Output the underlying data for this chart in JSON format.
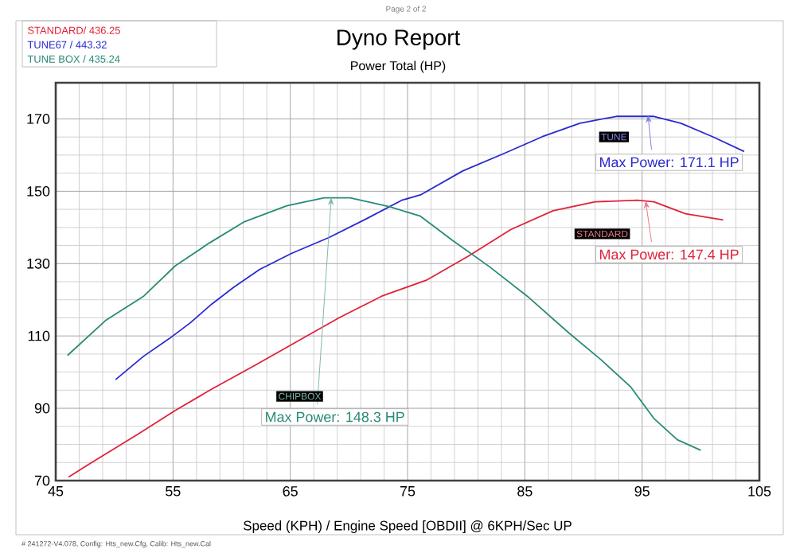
{
  "chart_data": {
    "type": "line",
    "title": "Dyno Report",
    "subtitle": "Power Total (HP)",
    "xlabel": "Speed (KPH) / Engine Speed [OBDII] @ 6KPH/Sec UP",
    "xlim": [
      45,
      105
    ],
    "ylim": [
      70,
      180
    ],
    "xticks": [
      45,
      55,
      65,
      75,
      85,
      95,
      105
    ],
    "yticks": [
      70,
      90,
      110,
      130,
      150,
      170
    ],
    "grid": true,
    "legend": "top left",
    "series": [
      {
        "name": "STANDARD/ 436.25",
        "color": "#e0223a",
        "x": [
          46.1,
          47.9,
          52.0,
          55.2,
          58.3,
          62.0,
          65.6,
          69.2,
          72.8,
          76.6,
          80.2,
          83.8,
          87.4,
          91.0,
          94.6,
          96.0,
          98.7,
          101.9
        ],
        "values": [
          71,
          74.7,
          82.8,
          89.4,
          95.3,
          101.9,
          108.5,
          115.1,
          121,
          125.4,
          132.1,
          139.4,
          144.6,
          147.1,
          147.5,
          147.1,
          143.8,
          142.1
        ]
      },
      {
        "name": "TUNE67 / 443.32",
        "color": "#2a2ad0",
        "x": [
          50.1,
          52.5,
          54.7,
          56.5,
          58.3,
          60.2,
          62.4,
          65.1,
          68.3,
          71.5,
          74.5,
          76.1,
          79.7,
          83.4,
          86.5,
          89.7,
          92.8,
          96.0,
          98.3,
          101.0,
          103.7
        ],
        "values": [
          97.9,
          104.4,
          109.3,
          113.7,
          118.8,
          123.5,
          128.4,
          132.8,
          137.2,
          142.4,
          147.5,
          149,
          155.6,
          160.7,
          165.1,
          168.8,
          170.7,
          170.7,
          168.8,
          165.1,
          161
        ]
      },
      {
        "name": "TUNE BOX / 435.24",
        "color": "#2a8a78",
        "x": [
          46.0,
          49.3,
          52.5,
          55.2,
          58.1,
          61.1,
          64.7,
          67.9,
          70.1,
          73.5,
          76.1,
          78.8,
          82.0,
          85.2,
          88.8,
          91.5,
          94.0,
          96.0,
          98.0,
          100.0
        ],
        "values": [
          104.6,
          114.4,
          121,
          129.4,
          135.7,
          141.6,
          146,
          148.2,
          148.2,
          145.7,
          143.1,
          136.5,
          129.1,
          121,
          110.7,
          103.4,
          96,
          87.2,
          81.3,
          78.4
        ]
      }
    ],
    "annotations": [
      {
        "text": "Max Power: 171.1 HP",
        "x": 95.5,
        "y": 171.1
      },
      {
        "text": "Max Power: 147.4 HP",
        "x": 95.3,
        "y": 147.4
      },
      {
        "text": "Max Power: 148.3 HP",
        "x": 68.5,
        "y": 148.3
      },
      "TUNE",
      "STANDARD",
      "CHIPBOX",
      "Page 2 of 2",
      "# 241272-V4.078, Config: Hts_new.Cfg, Calib: Hts_new.Cal"
    ]
  }
}
